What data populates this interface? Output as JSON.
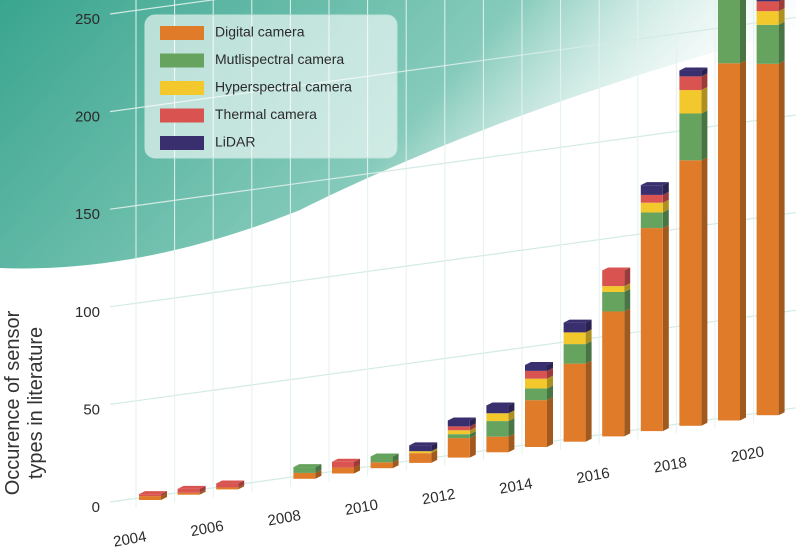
{
  "chart_data": {
    "type": "bar",
    "stacked": true,
    "y_label": "Occurence of sensor types in literature",
    "categories": [
      "2004",
      null,
      "2006",
      null,
      "2008",
      null,
      "2010",
      null,
      "2012",
      null,
      "2014",
      null,
      "2016",
      null,
      "2018",
      null,
      "2020"
    ],
    "series": [
      {
        "name": "Digital camera",
        "color": "#e07b2a",
        "values": [
          2,
          1,
          1,
          0,
          3,
          3,
          3,
          5,
          10,
          8,
          24,
          40,
          64,
          104,
          136,
          183,
          180
        ]
      },
      {
        "name": "Mutlispectral camera",
        "color": "#66a35e",
        "values": [
          0,
          0,
          0,
          0,
          3,
          0,
          3,
          0,
          2,
          8,
          6,
          10,
          10,
          8,
          24,
          40,
          20
        ]
      },
      {
        "name": "Hyperspectral camera",
        "color": "#f2c82c",
        "values": [
          0,
          0,
          0,
          0,
          0,
          0,
          0,
          1,
          2,
          4,
          5,
          6,
          3,
          5,
          12,
          12,
          7
        ]
      },
      {
        "name": "Thermal camera",
        "color": "#d95450",
        "values": [
          1,
          2,
          2,
          0,
          0,
          3,
          0,
          0,
          2,
          0,
          4,
          0,
          8,
          4,
          7,
          7,
          5
        ]
      },
      {
        "name": "LiDAR",
        "color": "#3a2f6e",
        "values": [
          0,
          0,
          0,
          0,
          0,
          0,
          0,
          3,
          3,
          4,
          3,
          5,
          0,
          5,
          3,
          3,
          5
        ]
      }
    ],
    "ylim": [
      0,
      250
    ],
    "yticks": [
      0,
      50,
      100,
      150,
      200,
      250
    ],
    "grid": true
  }
}
